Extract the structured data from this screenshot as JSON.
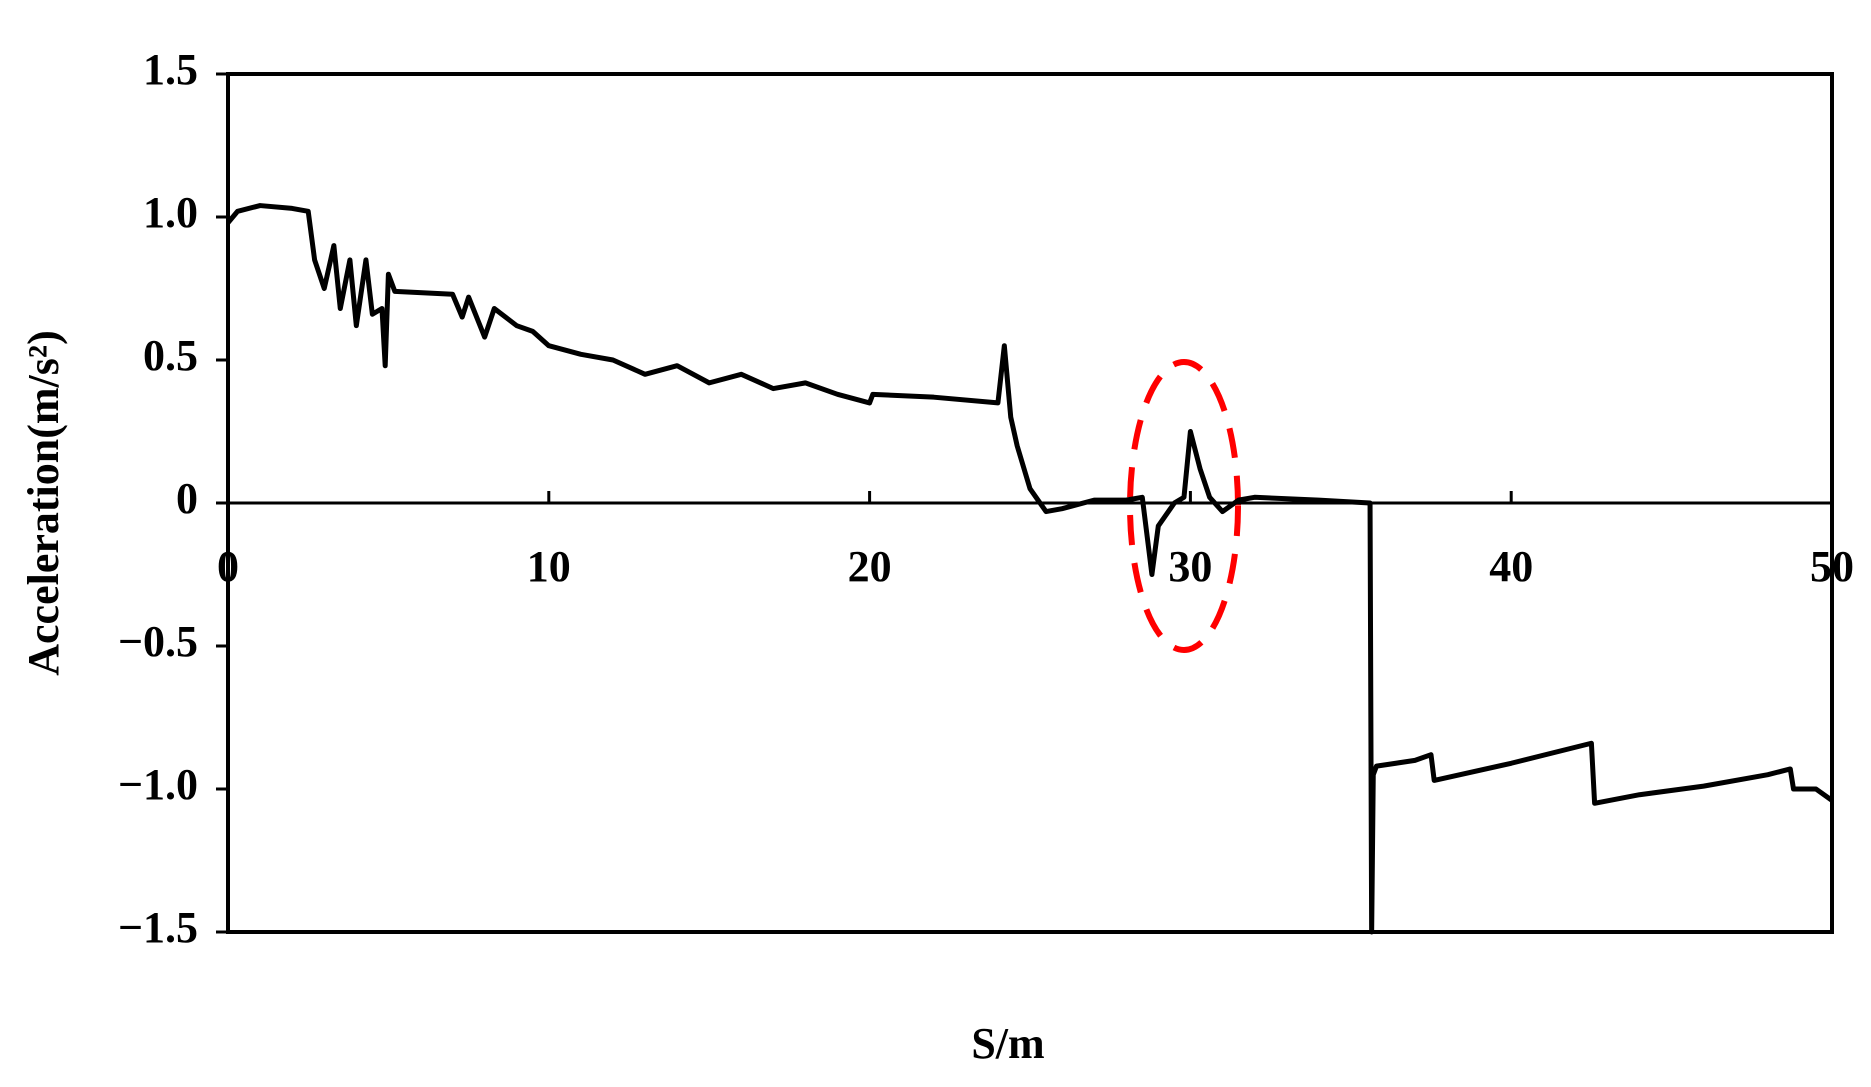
{
  "chart_data": {
    "type": "line",
    "xlabel": "S/m",
    "ylabel": "Acceleration(m/s²)",
    "xlim": [
      0,
      50
    ],
    "ylim": [
      -1.5,
      1.5
    ],
    "xticks": [
      0,
      10,
      20,
      30,
      40,
      50
    ],
    "yticks": [
      1.5,
      {
        "value": 1.0,
        "label": "1.0"
      },
      0.5,
      0,
      {
        "value": -0.5,
        "label": "−0.5"
      },
      {
        "value": -1.0,
        "label": "−1.0"
      },
      {
        "value": -1.5,
        "label": "−1.5"
      }
    ],
    "x": [
      0,
      0.3,
      1,
      2,
      2.5,
      2.7,
      3,
      3.3,
      3.5,
      3.8,
      4,
      4.3,
      4.5,
      4.8,
      4.9,
      5,
      5.2,
      7,
      7.3,
      7.5,
      8,
      8.3,
      9,
      9.5,
      10,
      11,
      12,
      13,
      14,
      15,
      16,
      17,
      18,
      19,
      20,
      20.1,
      22,
      24,
      24.2,
      24.4,
      24.6,
      25,
      25.5,
      26,
      27,
      28,
      28.5,
      28.8,
      29,
      29.5,
      29.8,
      30,
      30.3,
      30.6,
      31,
      31.5,
      32,
      34,
      35.6,
      35.65,
      35.7,
      35.8,
      37,
      37.5,
      37.6,
      40,
      42.5,
      42.6,
      44,
      46,
      48,
      48.7,
      48.8,
      49.5,
      50
    ],
    "series": [
      {
        "color": "#000000",
        "values": [
          0.98,
          1.02,
          1.04,
          1.03,
          1.02,
          0.85,
          0.75,
          0.9,
          0.68,
          0.85,
          0.62,
          0.85,
          0.66,
          0.68,
          0.48,
          0.8,
          0.74,
          0.73,
          0.65,
          0.72,
          0.58,
          0.68,
          0.62,
          0.6,
          0.55,
          0.52,
          0.5,
          0.45,
          0.48,
          0.42,
          0.45,
          0.4,
          0.42,
          0.38,
          0.35,
          0.38,
          0.37,
          0.35,
          0.55,
          0.3,
          0.2,
          0.05,
          -0.03,
          -0.02,
          0.01,
          0.01,
          0.02,
          -0.25,
          -0.08,
          0.0,
          0.02,
          0.25,
          0.12,
          0.02,
          -0.03,
          0.01,
          0.02,
          0.01,
          0.0,
          -1.5,
          -0.95,
          -0.92,
          -0.9,
          -0.88,
          -0.97,
          -0.91,
          -0.84,
          -1.05,
          -1.02,
          -0.99,
          -0.95,
          -0.93,
          -1.0,
          -1.0,
          -1.04
        ]
      }
    ]
  }
}
